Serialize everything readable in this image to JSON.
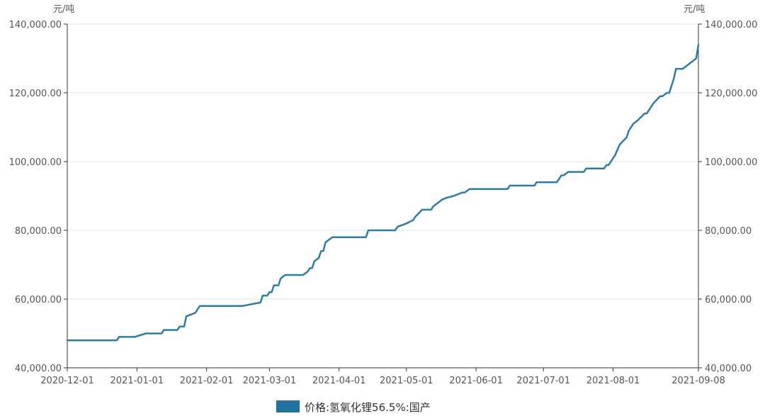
{
  "chart_data": {
    "type": "line",
    "y_unit_left": "元/吨",
    "y_unit_right": "元/吨",
    "ylim": [
      40000,
      140000
    ],
    "y_ticks": [
      40000,
      60000,
      80000,
      100000,
      120000,
      140000
    ],
    "y_tick_labels": [
      "40,000.00",
      "60,000.00",
      "80,000.00",
      "100,000.00",
      "120,000.00",
      "140,000.00"
    ],
    "xlim": [
      "2020-12-01",
      "2021-09-08"
    ],
    "x_ticks": [
      "2020-12-01",
      "2021-01-01",
      "2021-02-01",
      "2021-03-01",
      "2021-04-01",
      "2021-05-01",
      "2021-06-01",
      "2021-07-01",
      "2021-08-01",
      "2021-09-08"
    ],
    "x_tick_labels": [
      "2020-12-01",
      "2021-01-01",
      "2021-02-01",
      "2021-03-01",
      "2021-04-01",
      "2021-05-01",
      "2021-06-01",
      "2021-07-01",
      "2021-08-01",
      "2021-09-08"
    ],
    "grid": true,
    "legend_position": "bottom",
    "colors": {
      "series": "#2e7ca2",
      "legend_swatch": "#21739e"
    },
    "series": [
      {
        "name": "价格:氢氧化锂56.5%:国产",
        "x": [
          "2020-12-01",
          "2020-12-23",
          "2020-12-24",
          "2020-12-31",
          "2021-01-05",
          "2021-01-12",
          "2021-01-13",
          "2021-01-19",
          "2021-01-20",
          "2021-01-22",
          "2021-01-23",
          "2021-01-27",
          "2021-01-29",
          "2021-01-30",
          "2021-02-17",
          "2021-02-25",
          "2021-02-26",
          "2021-02-28",
          "2021-03-01",
          "2021-03-02",
          "2021-03-03",
          "2021-03-05",
          "2021-03-06",
          "2021-03-08",
          "2021-03-13",
          "2021-03-14",
          "2021-03-16",
          "2021-03-17",
          "2021-03-18",
          "2021-03-19",
          "2021-03-20",
          "2021-03-21",
          "2021-03-22",
          "2021-03-23",
          "2021-03-24",
          "2021-03-25",
          "2021-03-26",
          "2021-03-28",
          "2021-03-29",
          "2021-03-31",
          "2021-04-06",
          "2021-04-13",
          "2021-04-14",
          "2021-04-26",
          "2021-04-27",
          "2021-05-01",
          "2021-05-04",
          "2021-05-05",
          "2021-05-08",
          "2021-05-12",
          "2021-05-13",
          "2021-05-15",
          "2021-05-17",
          "2021-05-19",
          "2021-05-22",
          "2021-05-26",
          "2021-05-27",
          "2021-05-29",
          "2021-05-31",
          "2021-06-15",
          "2021-06-16",
          "2021-06-27",
          "2021-06-28",
          "2021-07-07",
          "2021-07-09",
          "2021-07-10",
          "2021-07-12",
          "2021-07-13",
          "2021-07-14",
          "2021-07-19",
          "2021-07-20",
          "2021-07-28",
          "2021-07-29",
          "2021-07-30",
          "2021-08-02",
          "2021-08-04",
          "2021-08-07",
          "2021-08-08",
          "2021-08-09",
          "2021-08-10",
          "2021-08-11",
          "2021-08-12",
          "2021-08-15",
          "2021-08-16",
          "2021-08-18",
          "2021-08-19",
          "2021-08-22",
          "2021-08-23",
          "2021-08-25",
          "2021-08-26",
          "2021-08-28",
          "2021-08-29",
          "2021-09-01",
          "2021-09-07",
          "2021-09-08"
        ],
        "y": [
          48000,
          48000,
          49000,
          49000,
          50000,
          50000,
          51000,
          51000,
          52000,
          52000,
          55000,
          56000,
          58000,
          58000,
          58000,
          59000,
          61000,
          61000,
          62000,
          62000,
          64000,
          64000,
          66000,
          67000,
          67000,
          67000,
          67000,
          67500,
          68000,
          69000,
          69000,
          71000,
          71500,
          72000,
          74000,
          74000,
          76500,
          77500,
          78000,
          78000,
          78000,
          78000,
          80000,
          80000,
          81000,
          82000,
          83000,
          84000,
          86000,
          86000,
          87000,
          88000,
          89000,
          89500,
          90000,
          91000,
          91000,
          92000,
          92000,
          92000,
          93000,
          93000,
          94000,
          94000,
          96000,
          96000,
          97000,
          97000,
          97000,
          97000,
          98000,
          98000,
          99000,
          99000,
          102000,
          105000,
          107000,
          109000,
          110000,
          111000,
          111500,
          112000,
          114000,
          114000,
          116000,
          117000,
          119000,
          119000,
          120000,
          120000,
          124000,
          127000,
          127000,
          130000,
          134000
        ]
      }
    ]
  }
}
